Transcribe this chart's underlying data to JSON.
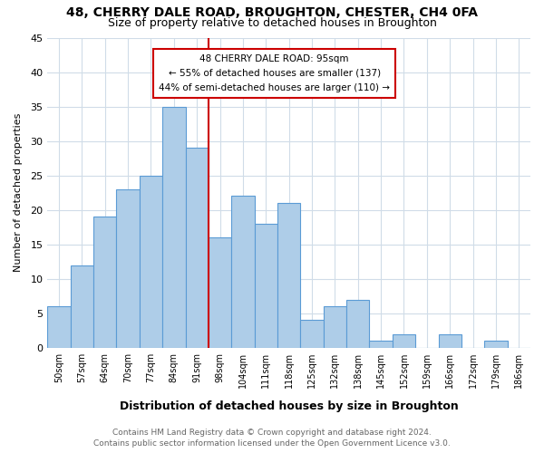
{
  "title_line1": "48, CHERRY DALE ROAD, BROUGHTON, CHESTER, CH4 0FA",
  "title_line2": "Size of property relative to detached houses in Broughton",
  "xlabel": "Distribution of detached houses by size in Broughton",
  "ylabel": "Number of detached properties",
  "bar_labels": [
    "50sqm",
    "57sqm",
    "64sqm",
    "70sqm",
    "77sqm",
    "84sqm",
    "91sqm",
    "98sqm",
    "104sqm",
    "111sqm",
    "118sqm",
    "125sqm",
    "132sqm",
    "138sqm",
    "145sqm",
    "152sqm",
    "159sqm",
    "166sqm",
    "172sqm",
    "179sqm",
    "186sqm"
  ],
  "bar_values": [
    6,
    12,
    19,
    23,
    25,
    35,
    29,
    16,
    22,
    18,
    21,
    4,
    6,
    7,
    1,
    2,
    0,
    2,
    0,
    1,
    0
  ],
  "bar_color": "#aecde8",
  "bar_edge_color": "#5b9bd5",
  "vline_pos": 6.5,
  "vline_color": "#cc0000",
  "annotation_title": "48 CHERRY DALE ROAD: 95sqm",
  "annotation_line1": "← 55% of detached houses are smaller (137)",
  "annotation_line2": "44% of semi-detached houses are larger (110) →",
  "annotation_box_color": "#ffffff",
  "annotation_box_edge": "#cc0000",
  "ylim": [
    0,
    45
  ],
  "yticks": [
    0,
    5,
    10,
    15,
    20,
    25,
    30,
    35,
    40,
    45
  ],
  "footer_line1": "Contains HM Land Registry data © Crown copyright and database right 2024.",
  "footer_line2": "Contains public sector information licensed under the Open Government Licence v3.0.",
  "bg_color": "#ffffff",
  "grid_color": "#d0dce8"
}
